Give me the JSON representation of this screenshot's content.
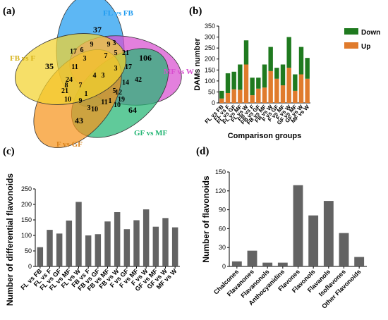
{
  "panels": {
    "a": "(a)",
    "b": "(b)",
    "c": "(c)",
    "d": "(d)"
  },
  "chart_data": [
    {
      "panel": "(a)",
      "type": "venn",
      "sets": [
        {
          "name": "FL vs FB",
          "color": "#1f9bf0"
        },
        {
          "name": "MF vs W",
          "color": "#d84fd0"
        },
        {
          "name": "GF vs MF",
          "color": "#22b573"
        },
        {
          "name": "F vs GF",
          "color": "#f7941d"
        },
        {
          "name": "FB vs F",
          "color": "#f2d22e"
        }
      ],
      "numbers": [
        "37",
        "106",
        "64",
        "43",
        "35",
        "3",
        "17",
        "6",
        "9",
        "9",
        "3",
        "5",
        "21",
        "7",
        "17",
        "42",
        "14",
        "12",
        "5",
        "19",
        "10",
        "11",
        "10",
        "3",
        "9",
        "10",
        "8",
        "24",
        "21",
        "11",
        "7",
        "3",
        "4",
        "3",
        "1",
        "1"
      ]
    },
    {
      "panel": "(b)",
      "type": "bar",
      "stacked": true,
      "categories": [
        "FL vs FB",
        "FL vs F",
        "FL vs GF",
        "FL vs MF",
        "FL vs W",
        "FB vs F",
        "FB vs GF",
        "FB vs MF",
        "FB vs W",
        "F vs GF",
        "F vs MF",
        "F vs W",
        "GF vs MF",
        "GF vs W",
        "MF vs W"
      ],
      "series": [
        {
          "name": "Up",
          "color": "#e07b2c",
          "values": [
            20,
            45,
            62,
            60,
            175,
            35,
            65,
            70,
            145,
            110,
            80,
            160,
            55,
            130,
            110
          ]
        },
        {
          "name": "Down",
          "color": "#1f7a1f",
          "values": [
            35,
            90,
            80,
            115,
            110,
            80,
            50,
            105,
            110,
            50,
            95,
            140,
            75,
            125,
            95
          ]
        }
      ],
      "xlabel": "Comparison groups",
      "ylabel": "DAMs number",
      "ylim": [
        0,
        350
      ],
      "yticks": [
        "0",
        "50",
        "100",
        "150",
        "200",
        "250",
        "300",
        "350"
      ],
      "legend": "right"
    },
    {
      "panel": "(c)",
      "type": "bar",
      "color": "#636363",
      "categories": [
        "FL vs FB",
        "FL vs F",
        "FL vs GF",
        "FL vs MF",
        "FL vs W",
        "FB vs F",
        "FB vs GF",
        "FB vs MF",
        "FB vs W",
        "F vs GF",
        "F vs MF",
        "F vs W",
        "GF vs MF",
        "GF vs W",
        "MF vs W"
      ],
      "values": [
        62,
        118,
        106,
        148,
        208,
        100,
        104,
        145,
        175,
        120,
        149,
        184,
        128,
        156,
        126
      ],
      "ylabel": "Number of differential flavonoids",
      "ylim": [
        0,
        250
      ],
      "yticks": [
        "0",
        "50",
        "100",
        "150",
        "200",
        "250"
      ]
    },
    {
      "panel": "(d)",
      "type": "bar",
      "color": "#636363",
      "categories": [
        "Chalcones",
        "Flavanones",
        "Flavanonols",
        "Anthocyanidins",
        "Flavones",
        "Flavonols",
        "Flavanols",
        "Isoflavones",
        "Other Flavonoids"
      ],
      "values": [
        8,
        25,
        6,
        6,
        129,
        81,
        104,
        53,
        15
      ],
      "ylabel": "Number of flavonoids",
      "ylim": [
        0,
        150
      ],
      "yticks": [
        "0",
        "30",
        "60",
        "90",
        "120",
        "150"
      ]
    }
  ]
}
